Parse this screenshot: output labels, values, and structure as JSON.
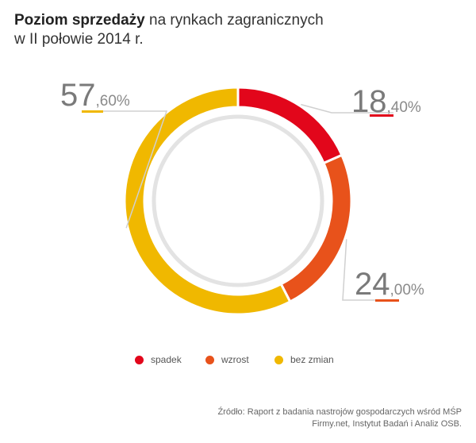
{
  "title": {
    "bold": "Poziom sprzedaży",
    "rest_line1": " na rynkach zagranicznych",
    "line2": "w II połowie 2014 r."
  },
  "chart_data": {
    "type": "pie",
    "variant": "donut",
    "title": "Poziom sprzedaży na rynkach zagranicznych w II połowie 2014 r.",
    "series": [
      {
        "name": "spadek",
        "value": 18.4,
        "big": "18",
        "small": ",40%",
        "color": "#e2061b"
      },
      {
        "name": "wzrost",
        "value": 24.0,
        "big": "24",
        "small": ",00%",
        "color": "#e8521b"
      },
      {
        "name": "bez zmian",
        "value": 57.6,
        "big": "57",
        "small": ",60%",
        "color": "#f0b800"
      }
    ],
    "legend_position": "bottom"
  },
  "source": {
    "line1": "Źródło: Raport z badania nastrojów gospodarczych wśród MŚP",
    "line2": "Firmy.net, Instytut Badań i Analiz OSB."
  }
}
